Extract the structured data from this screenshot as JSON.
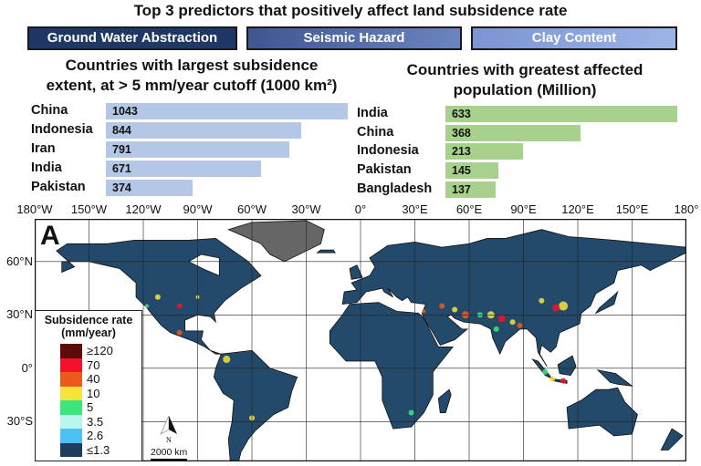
{
  "title": "Top 3 predictors that positively affect land subsidence rate",
  "predictors": [
    {
      "label": "Ground Water Abstraction",
      "color": "#1f3764"
    },
    {
      "label": "Seismic Hazard",
      "color": "#4a63a0"
    },
    {
      "label": "Clay Content",
      "color": "#7f9ad6"
    }
  ],
  "chart_data": [
    {
      "type": "bar",
      "orientation": "horizontal",
      "title_line1": "Countries with largest subsidence",
      "title_line2": "extent, at > 5 mm/year cutoff  (1000 km²)",
      "categories": [
        "China",
        "Indonesia",
        "Iran",
        "India",
        "Pakistan"
      ],
      "values": [
        1043,
        844,
        791,
        671,
        374
      ],
      "color": "#b4c7e7"
    },
    {
      "type": "bar",
      "orientation": "horizontal",
      "title_line1": "Countries with greatest affected",
      "title_line2": "population (Million)",
      "categories": [
        "India",
        "China",
        "Indonesia",
        "Pakistan",
        "Bangladesh"
      ],
      "values": [
        633,
        368,
        213,
        145,
        137
      ],
      "color": "#a9d18e"
    }
  ],
  "map": {
    "panel_label": "A",
    "lon_ticks": [
      "180°W",
      "150°W",
      "120°W",
      "90°W",
      "60°W",
      "30°W",
      "0°",
      "30°E",
      "60°E",
      "90°E",
      "120°E",
      "150°E",
      "180°"
    ],
    "lat_ticks": [
      "60°N",
      "30°N",
      "0°",
      "30°S"
    ],
    "land_color": "#23496b",
    "greenland_color": "#666666",
    "scale_bar": "2000 km",
    "north_label": "N",
    "legend": {
      "title_line1": "Subsidence rate",
      "title_line2": "(mm/year)",
      "items": [
        {
          "label": "≥120",
          "color": "#5c0a0a"
        },
        {
          "label": "70",
          "color": "#f5102c"
        },
        {
          "label": "40",
          "color": "#ea5a1c"
        },
        {
          "label": "10",
          "color": "#f7e43a"
        },
        {
          "label": "5",
          "color": "#3ee47c"
        },
        {
          "label": "3.5",
          "color": "#baf6ef"
        },
        {
          "label": "2.6",
          "color": "#4fc0f2"
        },
        {
          "label": "≤1.3",
          "color": "#1d3d5c"
        }
      ]
    }
  }
}
